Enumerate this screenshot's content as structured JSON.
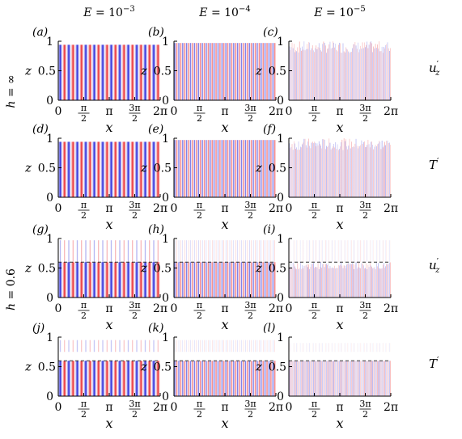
{
  "figure": {
    "columns": [
      {
        "label": "E = 10",
        "exponent": "−3"
      },
      {
        "label": "E = 10",
        "exponent": "−4"
      },
      {
        "label": "E = 10",
        "exponent": "−5"
      }
    ],
    "row_groups": [
      {
        "label": "h = ∞"
      },
      {
        "label": "h = 0.6"
      }
    ],
    "row_fields": [
      {
        "label": "u",
        "sup": "′",
        "sub": "z"
      },
      {
        "label": "T",
        "sup": "′",
        "sub": ""
      },
      {
        "label": "u",
        "sup": "′",
        "sub": "z"
      },
      {
        "label": "T",
        "sup": "′",
        "sub": ""
      }
    ]
  },
  "chart_data": {
    "type": "heatmap",
    "xlabel": "x",
    "ylabel": "z",
    "xlim": [
      0,
      6.2832
    ],
    "ylim": [
      0,
      1
    ],
    "xticks": [
      {
        "value": 0,
        "label": "0"
      },
      {
        "value": 1.5708,
        "label": "π/2"
      },
      {
        "value": 3.1416,
        "label": "π"
      },
      {
        "value": 4.7124,
        "label": "3π/2"
      },
      {
        "value": 6.2832,
        "label": "2π"
      }
    ],
    "yticks": [
      {
        "value": 0,
        "label": "0"
      },
      {
        "value": 0.5,
        "label": "0.5"
      },
      {
        "value": 1,
        "label": "1"
      }
    ],
    "colors": {
      "positive": "#e8242a",
      "negative": "#1c1cd8",
      "zero": "#ffffff"
    },
    "panels": [
      {
        "id": "(a)",
        "field": "u'_z",
        "E": 0.001,
        "h": "∞",
        "wavenumber": 12,
        "fill": 0.94,
        "h_line": null,
        "style": "solid"
      },
      {
        "id": "(b)",
        "field": "u'_z",
        "E": 0.0001,
        "h": "∞",
        "wavenumber": 26,
        "fill": 0.97,
        "h_line": null,
        "style": "fine"
      },
      {
        "id": "(c)",
        "field": "u'_z",
        "E": 1e-05,
        "h": "∞",
        "wavenumber": 55,
        "fill": 1.0,
        "h_line": null,
        "style": "faint"
      },
      {
        "id": "(d)",
        "field": "T'",
        "E": 0.001,
        "h": "∞",
        "wavenumber": 12,
        "fill": 0.94,
        "h_line": null,
        "style": "solid"
      },
      {
        "id": "(e)",
        "field": "T'",
        "E": 0.0001,
        "h": "∞",
        "wavenumber": 26,
        "fill": 0.97,
        "h_line": null,
        "style": "fine"
      },
      {
        "id": "(f)",
        "field": "T'",
        "E": 1e-05,
        "h": "∞",
        "wavenumber": 55,
        "fill": 1.0,
        "h_line": null,
        "style": "faint"
      },
      {
        "id": "(g)",
        "field": "u'_z",
        "E": 0.001,
        "h": 0.6,
        "wavenumber": 12,
        "fill": 0.95,
        "h_line": 0.6,
        "style": "solid-top"
      },
      {
        "id": "(h)",
        "field": "u'_z",
        "E": 0.0001,
        "h": 0.6,
        "wavenumber": 26,
        "fill": 0.93,
        "h_line": 0.6,
        "style": "fine-top"
      },
      {
        "id": "(i)",
        "field": "u'_z",
        "E": 1e-05,
        "h": 0.6,
        "wavenumber": 55,
        "fill": 0.88,
        "h_line": 0.6,
        "style": "faint-top"
      },
      {
        "id": "(j)",
        "field": "T'",
        "E": 0.001,
        "h": 0.6,
        "wavenumber": 12,
        "fill": 0.6,
        "h_line": 0.6,
        "style": "solid-split"
      },
      {
        "id": "(k)",
        "field": "T'",
        "E": 0.0001,
        "h": 0.6,
        "wavenumber": 26,
        "fill": 0.6,
        "h_line": 0.6,
        "style": "fine-split"
      },
      {
        "id": "(l)",
        "field": "T'",
        "E": 1e-05,
        "h": 0.6,
        "wavenumber": 55,
        "fill": 0.6,
        "h_line": 0.6,
        "style": "faint-split"
      }
    ]
  }
}
